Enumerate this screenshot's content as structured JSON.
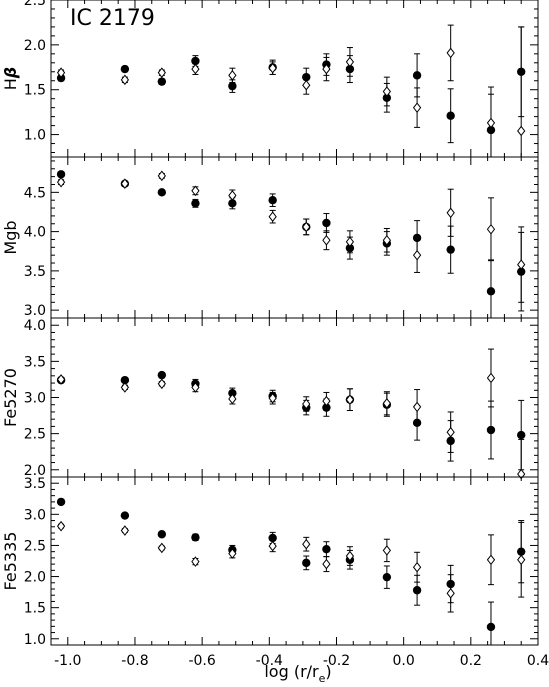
{
  "figure_label": "IC 2179",
  "xlabel_main": "log (r/r",
  "xlabel_sub": "e",
  "xlabel_close": ")",
  "colors": {
    "axis": "#000000",
    "marker": "#000000",
    "background": "#ffffff"
  },
  "chart_data": [
    {
      "type": "scatter",
      "ylabel": "Hβ",
      "ylabel_main": "H",
      "ylabel_greek": "β",
      "xlim": [
        -1.05,
        0.4
      ],
      "ylim": [
        0.75,
        2.5
      ],
      "x_ticks": [
        -1.0,
        -0.8,
        -0.6,
        -0.4,
        -0.2,
        0.0,
        0.2,
        0.4
      ],
      "y_ticks": [
        1.0,
        1.5,
        2.0,
        2.5
      ],
      "y_tick_labels": [
        "1.0",
        "1.5",
        "2.0",
        "2.5"
      ],
      "series": [
        {
          "marker": "filled-circle",
          "x": [
            -1.02,
            -0.83,
            -0.72,
            -0.62,
            -0.51,
            -0.39,
            -0.29,
            -0.23,
            -0.16,
            -0.05,
            0.04,
            0.14,
            0.26,
            0.35
          ],
          "y": [
            1.63,
            1.73,
            1.59,
            1.82,
            1.54,
            1.75,
            1.64,
            1.78,
            1.73,
            1.41,
            1.66,
            1.21,
            1.05,
            1.7
          ],
          "err": [
            0.03,
            0.03,
            0.03,
            0.06,
            0.07,
            0.08,
            0.1,
            0.12,
            0.15,
            0.16,
            0.24,
            0.3,
            0.4,
            0.5
          ]
        },
        {
          "marker": "open-diamond",
          "x": [
            -1.02,
            -0.83,
            -0.72,
            -0.62,
            -0.51,
            -0.39,
            -0.29,
            -0.23,
            -0.16,
            -0.05,
            0.04,
            0.14,
            0.26,
            0.35
          ],
          "y": [
            1.69,
            1.61,
            1.69,
            1.73,
            1.66,
            1.74,
            1.55,
            1.73,
            1.81,
            1.48,
            1.3,
            1.91,
            1.13,
            1.04
          ],
          "err": [
            0.03,
            0.03,
            0.03,
            0.06,
            0.08,
            0.07,
            0.1,
            0.13,
            0.16,
            0.16,
            0.22,
            0.31,
            0.4,
            1.16
          ]
        }
      ]
    },
    {
      "type": "scatter",
      "ylabel": "Mgb",
      "xlim": [
        -1.05,
        0.4
      ],
      "ylim": [
        2.9,
        4.95
      ],
      "x_ticks": [
        -1.0,
        -0.8,
        -0.6,
        -0.4,
        -0.2,
        0.0,
        0.2,
        0.4
      ],
      "y_ticks": [
        3.0,
        3.5,
        4.0,
        4.5
      ],
      "y_tick_labels": [
        "3.0",
        "3.5",
        "4.0",
        "4.5"
      ],
      "series": [
        {
          "marker": "filled-circle",
          "x": [
            -1.02,
            -0.83,
            -0.72,
            -0.62,
            -0.51,
            -0.39,
            -0.29,
            -0.23,
            -0.16,
            -0.05,
            0.04,
            0.14,
            0.26,
            0.35
          ],
          "y": [
            4.73,
            4.61,
            4.5,
            4.36,
            4.36,
            4.4,
            4.06,
            4.11,
            3.79,
            3.85,
            3.92,
            3.77,
            3.24,
            3.49
          ],
          "err": [
            0.03,
            0.03,
            0.03,
            0.05,
            0.07,
            0.08,
            0.1,
            0.12,
            0.14,
            0.15,
            0.22,
            0.3,
            0.4,
            0.5
          ]
        },
        {
          "marker": "open-diamond",
          "x": [
            -1.02,
            -0.83,
            -0.72,
            -0.62,
            -0.51,
            -0.39,
            -0.29,
            -0.23,
            -0.16,
            -0.05,
            0.04,
            0.14,
            0.26,
            0.35
          ],
          "y": [
            4.63,
            4.61,
            4.71,
            4.52,
            4.46,
            4.19,
            4.06,
            3.89,
            3.87,
            3.89,
            3.7,
            4.24,
            4.03,
            3.58
          ],
          "err": [
            0.03,
            0.03,
            0.03,
            0.05,
            0.07,
            0.08,
            0.1,
            0.12,
            0.14,
            0.15,
            0.22,
            0.3,
            0.4,
            0.48
          ]
        }
      ]
    },
    {
      "type": "scatter",
      "ylabel": "Fe5270",
      "xlim": [
        -1.05,
        0.4
      ],
      "ylim": [
        1.9,
        4.1
      ],
      "x_ticks": [
        -1.0,
        -0.8,
        -0.6,
        -0.4,
        -0.2,
        0.0,
        0.2,
        0.4
      ],
      "y_ticks": [
        2.0,
        2.5,
        3.0,
        3.5,
        4.0
      ],
      "y_tick_labels": [
        "2.0",
        "2.5",
        "3.0",
        "3.5",
        "4.0"
      ],
      "series": [
        {
          "marker": "filled-circle",
          "x": [
            -1.02,
            -0.83,
            -0.72,
            -0.62,
            -0.51,
            -0.39,
            -0.29,
            -0.23,
            -0.16,
            -0.05,
            0.04,
            0.14,
            0.26,
            0.35
          ],
          "y": [
            3.24,
            3.24,
            3.31,
            3.19,
            3.06,
            3.02,
            2.86,
            2.86,
            2.97,
            2.9,
            2.65,
            2.4,
            2.55,
            2.48
          ],
          "err": [
            0.03,
            0.03,
            0.03,
            0.06,
            0.07,
            0.08,
            0.1,
            0.12,
            0.15,
            0.16,
            0.24,
            0.28,
            0.4,
            0.48
          ]
        },
        {
          "marker": "open-diamond",
          "x": [
            -1.02,
            -0.83,
            -0.72,
            -0.62,
            -0.51,
            -0.39,
            -0.29,
            -0.23,
            -0.16,
            -0.05,
            0.04,
            0.14,
            0.26,
            0.35
          ],
          "y": [
            3.25,
            3.14,
            3.19,
            3.14,
            2.98,
            2.99,
            2.91,
            2.95,
            2.97,
            2.92,
            2.87,
            2.52,
            3.27,
            1.94
          ],
          "err": [
            0.03,
            0.03,
            0.03,
            0.06,
            0.07,
            0.08,
            0.1,
            0.12,
            0.15,
            0.16,
            0.24,
            0.28,
            0.4,
            0.48
          ]
        }
      ]
    },
    {
      "type": "scatter",
      "ylabel": "Fe5335",
      "xlim": [
        -1.05,
        0.4
      ],
      "ylim": [
        0.9,
        3.6
      ],
      "x_ticks": [
        -1.0,
        -0.8,
        -0.6,
        -0.4,
        -0.2,
        0.0,
        0.2,
        0.4
      ],
      "x_tick_labels": [
        "-1.0",
        "-0.8",
        "-0.6",
        "-0.4",
        "-0.2",
        "0.0",
        "0.2",
        "0.4"
      ],
      "y_ticks": [
        1.0,
        1.5,
        2.0,
        2.5,
        3.0,
        3.5
      ],
      "y_tick_labels": [
        "1.0",
        "1.5",
        "2.0",
        "2.5",
        "3.0",
        "3.5"
      ],
      "series": [
        {
          "marker": "filled-circle",
          "x": [
            -1.02,
            -0.83,
            -0.72,
            -0.62,
            -0.51,
            -0.39,
            -0.29,
            -0.23,
            -0.16,
            -0.05,
            0.04,
            0.14,
            0.26,
            0.35
          ],
          "y": [
            3.2,
            2.98,
            2.68,
            2.63,
            2.43,
            2.62,
            2.22,
            2.44,
            2.27,
            1.99,
            1.78,
            1.88,
            1.19,
            2.4
          ],
          "err": [
            0.03,
            0.03,
            0.03,
            0.05,
            0.07,
            0.09,
            0.11,
            0.12,
            0.15,
            0.18,
            0.24,
            0.3,
            0.4,
            0.5
          ]
        },
        {
          "marker": "open-diamond",
          "x": [
            -1.02,
            -0.83,
            -0.72,
            -0.62,
            -0.51,
            -0.39,
            -0.29,
            -0.23,
            -0.16,
            -0.05,
            0.04,
            0.14,
            0.26,
            0.35
          ],
          "y": [
            2.81,
            2.74,
            2.46,
            2.24,
            2.37,
            2.49,
            2.52,
            2.2,
            2.33,
            2.42,
            2.15,
            1.73,
            2.27,
            2.27
          ],
          "err": [
            0.03,
            0.03,
            0.03,
            0.05,
            0.07,
            0.09,
            0.11,
            0.12,
            0.15,
            0.18,
            0.24,
            0.3,
            0.4,
            0.6
          ]
        }
      ]
    }
  ]
}
